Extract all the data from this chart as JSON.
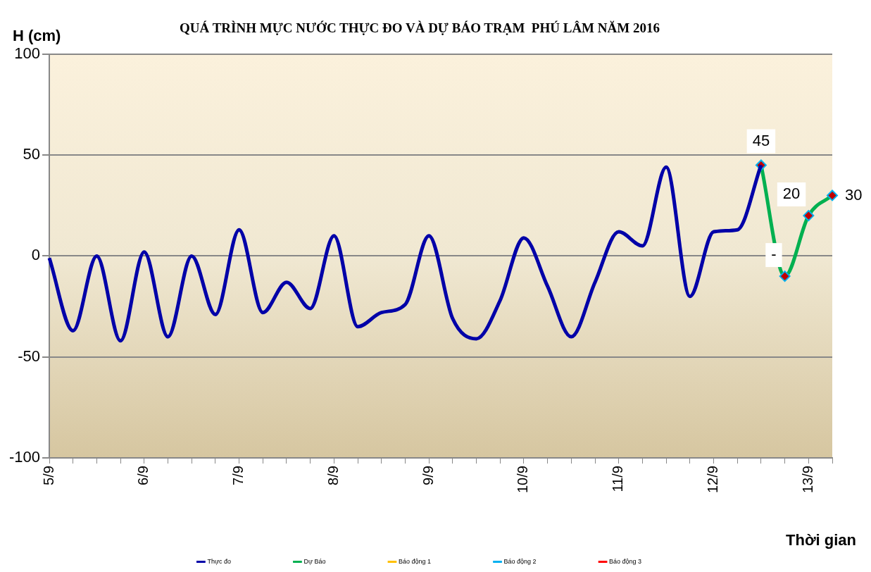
{
  "chart_data": {
    "type": "line",
    "title": "QUÁ TRÌNH MỰC NƯỚC THỰC ĐO VÀ DỰ BÁO TRẠM  PHÚ LÂM NĂM 2016",
    "ylabel": "H (cm)",
    "xlabel": "Thời gian",
    "categories": [
      "5/9",
      null,
      null,
      null,
      "6/9",
      null,
      null,
      null,
      "7/9",
      null,
      null,
      null,
      "8/9",
      null,
      null,
      null,
      "9/9",
      null,
      null,
      null,
      "10/9",
      null,
      null,
      null,
      "11/9",
      null,
      null,
      null,
      "12/9",
      null,
      null,
      null,
      "13/9",
      null
    ],
    "series": [
      {
        "name": "Thực đo",
        "color": "#0000a8",
        "values": [
          -1,
          -37,
          0,
          -42,
          2,
          -40,
          0,
          -29,
          13,
          -28,
          -13,
          -26,
          10,
          -35,
          -28,
          -24,
          10,
          -31,
          -41,
          -22,
          9,
          -15,
          -40,
          -13,
          12,
          5,
          44,
          -20,
          12,
          13,
          45,
          null,
          null,
          null
        ]
      },
      {
        "name": "Dự Báo",
        "color": "#00b050",
        "marker": "diamond",
        "colors": [
          null,
          null,
          null,
          null,
          null,
          null,
          null,
          null,
          null,
          null,
          null,
          null,
          null,
          null,
          null,
          null,
          null,
          null,
          null,
          null,
          null,
          null,
          null,
          null,
          null,
          null,
          null,
          null,
          null,
          null,
          "#c00000",
          "#c00000",
          "#c00000",
          "#c00000"
        ],
        "values": [
          null,
          null,
          null,
          null,
          null,
          null,
          null,
          null,
          null,
          null,
          null,
          null,
          null,
          null,
          null,
          null,
          null,
          null,
          null,
          null,
          null,
          null,
          null,
          null,
          null,
          null,
          null,
          null,
          null,
          null,
          45,
          -10,
          20,
          30
        ],
        "value_labels": [
          null,
          null,
          null,
          null,
          null,
          null,
          null,
          null,
          null,
          null,
          null,
          null,
          null,
          null,
          null,
          null,
          null,
          null,
          null,
          null,
          null,
          null,
          null,
          null,
          null,
          null,
          null,
          null,
          null,
          null,
          "45",
          "-",
          "20",
          "30"
        ]
      },
      {
        "name": "Báo động 1",
        "color": "#ffc000",
        "values": [
          null,
          null,
          null,
          null,
          null,
          null,
          null,
          null,
          null,
          null,
          null,
          null,
          null,
          null,
          null,
          null,
          null,
          null,
          null,
          null,
          null,
          null,
          null,
          null,
          null,
          null,
          null,
          null,
          null,
          null,
          null,
          null,
          null,
          null
        ]
      },
      {
        "name": "Báo động 2",
        "color": "#00b0f0",
        "values": [
          null,
          null,
          null,
          null,
          null,
          null,
          null,
          null,
          null,
          null,
          null,
          null,
          null,
          null,
          null,
          null,
          null,
          null,
          null,
          null,
          null,
          null,
          null,
          null,
          null,
          null,
          null,
          null,
          null,
          null,
          null,
          null,
          null,
          null
        ]
      },
      {
        "name": "Báo động 3",
        "color": "#ff0000",
        "values": [
          null,
          null,
          null,
          null,
          null,
          null,
          null,
          null,
          null,
          null,
          null,
          null,
          null,
          null,
          null,
          null,
          null,
          null,
          null,
          null,
          null,
          null,
          null,
          null,
          null,
          null,
          null,
          null,
          null,
          null,
          null,
          null,
          null,
          null
        ]
      }
    ],
    "ylim": [
      -100,
      100
    ],
    "yticks": [
      -100,
      -50,
      0,
      50,
      100
    ],
    "grid": "y",
    "legend": "bottom"
  }
}
